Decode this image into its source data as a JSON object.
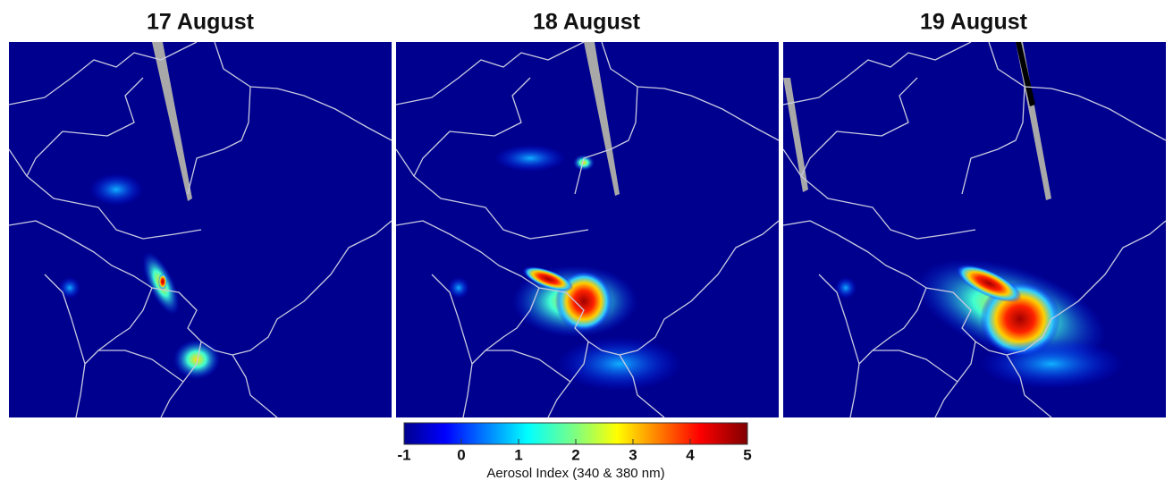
{
  "panels": [
    {
      "title": "17 August"
    },
    {
      "title": "18 August"
    },
    {
      "title": "19 August"
    }
  ],
  "colorbar": {
    "label": "Aerosol Index (340 & 380 nm)",
    "lim": [
      -1,
      5
    ],
    "ticks": [
      -1,
      0,
      1,
      2,
      3,
      4,
      5
    ]
  }
}
